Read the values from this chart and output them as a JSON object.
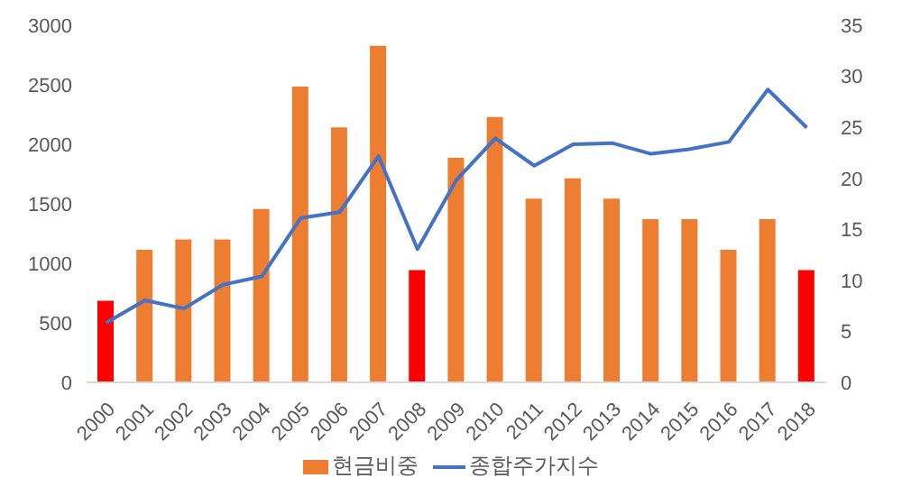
{
  "chart_data": {
    "type": "bar",
    "categories": [
      "2000",
      "2001",
      "2002",
      "2003",
      "2004",
      "2005",
      "2006",
      "2007",
      "2008",
      "2009",
      "2010",
      "2011",
      "2012",
      "2013",
      "2014",
      "2015",
      "2016",
      "2017",
      "2018"
    ],
    "series": [
      {
        "name": "현금비중",
        "axis": "y2",
        "color": "#ed7d31",
        "colors": [
          "#ff0000",
          "#ed7d31",
          "#ed7d31",
          "#ed7d31",
          "#ed7d31",
          "#ed7d31",
          "#ed7d31",
          "#ed7d31",
          "#ff0000",
          "#ed7d31",
          "#ed7d31",
          "#ed7d31",
          "#ed7d31",
          "#ed7d31",
          "#ed7d31",
          "#ed7d31",
          "#ed7d31",
          "#ed7d31",
          "#ff0000"
        ],
        "values": [
          8,
          13,
          14,
          14,
          17,
          29,
          25,
          33,
          11,
          22,
          26,
          18,
          20,
          18,
          16,
          16,
          13,
          16,
          11
        ]
      },
      {
        "name": "종합주가지수",
        "type": "line",
        "color": "#4472c4",
        "values": [
          500,
          690,
          620,
          820,
          890,
          1380,
          1430,
          1900,
          1120,
          1700,
          2050,
          1820,
          2000,
          2010,
          1920,
          1960,
          2020,
          2460,
          2140
        ]
      }
    ],
    "ylim": [
      0,
      3000
    ],
    "yticks": [
      0,
      500,
      1000,
      1500,
      2000,
      2500,
      3000
    ],
    "y2lim": [
      0,
      35
    ],
    "y2ticks": [
      0,
      5,
      10,
      15,
      20,
      25,
      30,
      35
    ],
    "grid": false,
    "legend": "bottom",
    "marker": "none"
  }
}
